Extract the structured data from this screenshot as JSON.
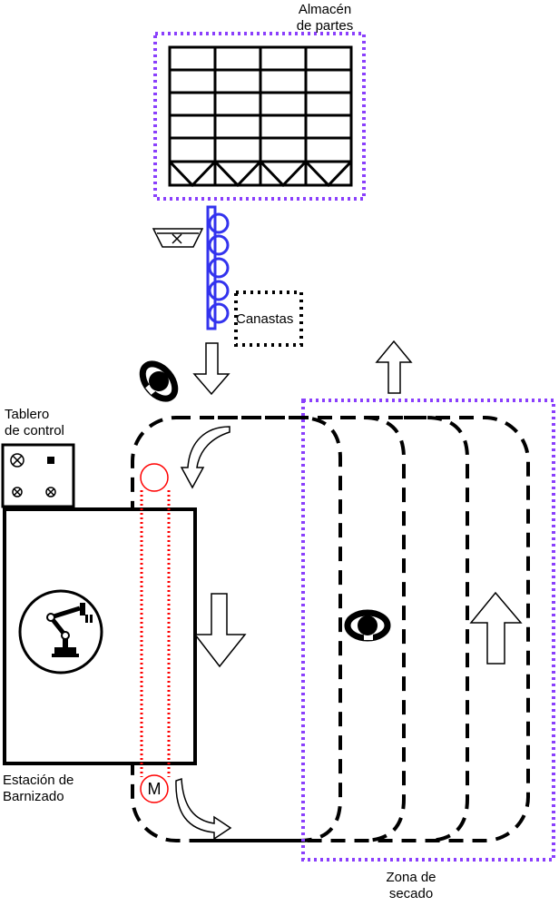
{
  "labels": {
    "warehouse_line1": "Almacén",
    "warehouse_line2": "de partes",
    "baskets": "Canastas",
    "control_line1": "Tablero",
    "control_line2": "de control",
    "station_line1": "Estación de",
    "station_line2": "Barnizado",
    "drying_line1": "Zona de",
    "drying_line2": "secado",
    "motor": "M"
  },
  "colors": {
    "warehouse_border": "#8a3ffc",
    "drying_border": "#8a3ffc",
    "conveyor_blue": "#3333ee",
    "chain_red": "#ff0000",
    "line": "#000000"
  },
  "icons": {
    "operators": [
      "person-topdown-icon",
      "person-topdown-icon"
    ],
    "robot": "robot-arm-icon",
    "basket": "basket-icon",
    "flow_arrows": [
      "arrow-down-icon",
      "arrow-up-icon",
      "curved-arrow-icon"
    ]
  }
}
